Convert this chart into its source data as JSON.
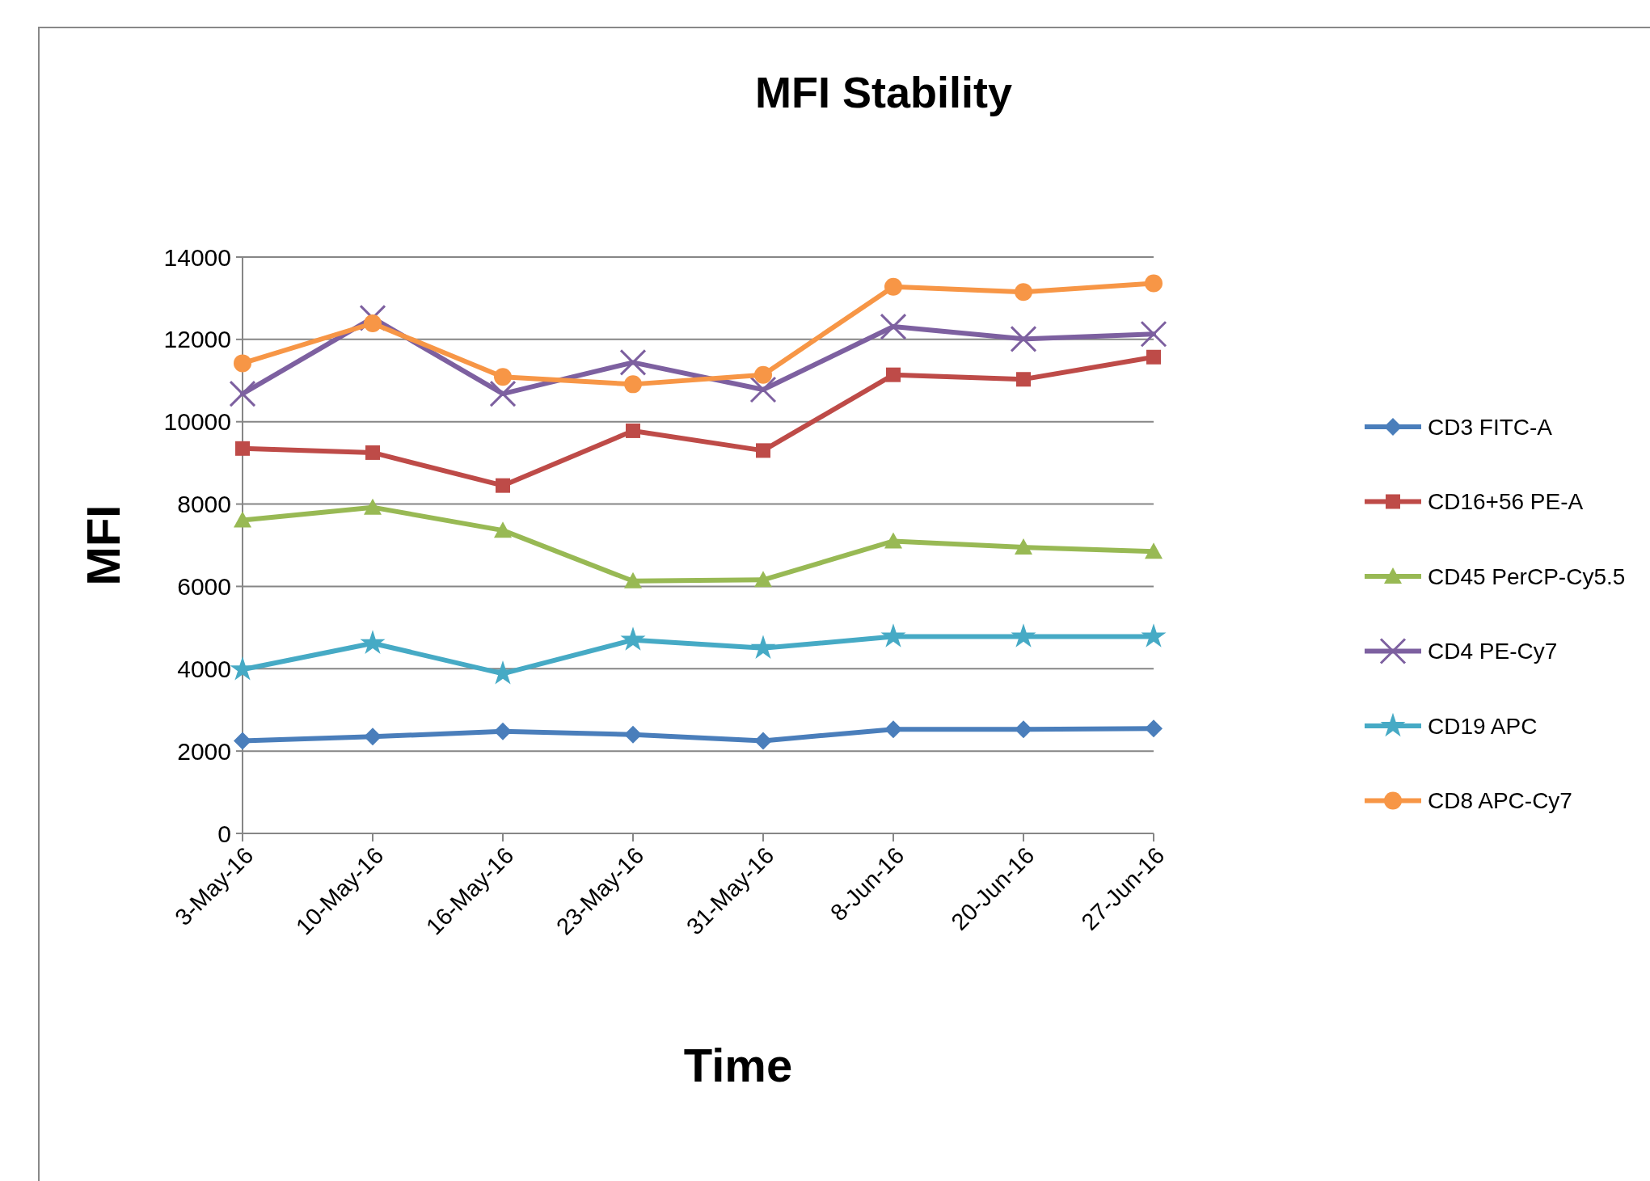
{
  "chart_data": {
    "type": "line",
    "title": "MFI Stability",
    "xlabel": "Time",
    "ylabel": "MFI",
    "categories": [
      "3-May-16",
      "10-May-16",
      "16-May-16",
      "23-May-16",
      "31-May-16",
      "8-Jun-16",
      "20-Jun-16",
      "27-Jun-16"
    ],
    "series": [
      {
        "name": "CD3 FITC-A",
        "color": "#4a7ebb",
        "marker": "diamond",
        "values": [
          2250,
          2350,
          2480,
          2400,
          2250,
          2530,
          2530,
          2550
        ]
      },
      {
        "name": "CD16+56 PE-A",
        "color": "#be4b48",
        "marker": "square",
        "values": [
          9350,
          9250,
          8450,
          9780,
          9300,
          11140,
          11030,
          11570
        ]
      },
      {
        "name": "CD45 PerCP-Cy5.5",
        "color": "#98b954",
        "marker": "triangle",
        "values": [
          7610,
          7920,
          7360,
          6130,
          6160,
          7100,
          6950,
          6850
        ]
      },
      {
        "name": "CD4 PE-Cy7",
        "color": "#7d60a0",
        "marker": "cross",
        "values": [
          10680,
          12520,
          10680,
          11440,
          10780,
          12310,
          12010,
          12130
        ]
      },
      {
        "name": "CD19 APC",
        "color": "#46aac5",
        "marker": "star",
        "values": [
          3980,
          4620,
          3880,
          4700,
          4500,
          4780,
          4780,
          4780
        ]
      },
      {
        "name": "CD8 APC-Cy7",
        "color": "#f79646",
        "marker": "circle",
        "values": [
          11420,
          12390,
          11090,
          10910,
          11140,
          13280,
          13150,
          13360
        ]
      }
    ],
    "ylim": [
      0,
      14000
    ],
    "yticks": [
      0,
      2000,
      4000,
      6000,
      8000,
      10000,
      12000,
      14000
    ],
    "grid": "y",
    "legend": "right",
    "line_style": "solid"
  }
}
